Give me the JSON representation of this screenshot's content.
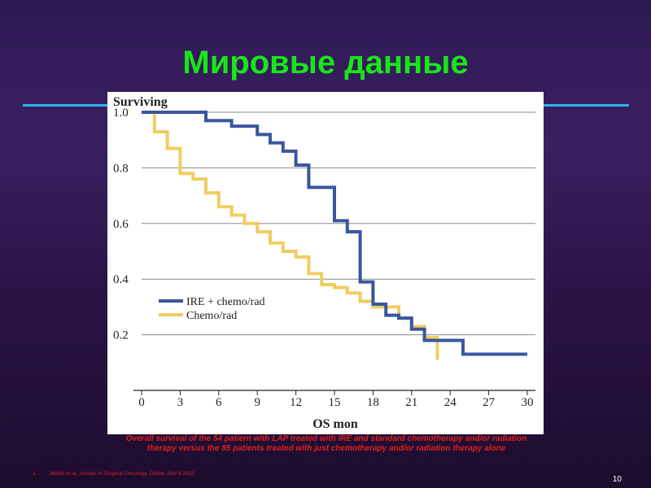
{
  "slide": {
    "title": "Мировые данные",
    "caption": "Overall survival of the 54 patient with LAP treated with IRE and standard chemotherapy and/or radiation therapy versus the 85 patients treated with just chemotherapy and/or radiation therapy alone",
    "footnote_number": "1.",
    "footnote_text": "Martin et al., Annals of Surgical Oncology, Online, Nov 6 2012",
    "page_number": "10",
    "colors": {
      "title": "#19e619",
      "rule": "#27b6f0",
      "caption": "#e0201c",
      "series_ire": "#3a56a0",
      "series_chemo": "#f0cd62"
    }
  },
  "chart_data": {
    "type": "line",
    "step": true,
    "ylabel": "Surviving",
    "xlabel": "OS mon",
    "xlim": [
      0,
      30
    ],
    "ylim": [
      0,
      1.0
    ],
    "x_ticks": [
      0,
      3,
      6,
      9,
      12,
      15,
      18,
      21,
      24,
      27,
      30
    ],
    "y_ticks": [
      0.2,
      0.4,
      0.6,
      0.8,
      1.0
    ],
    "y_tick_labels": [
      "0.2",
      "0.4",
      "0.6",
      "0.8",
      "1.0"
    ],
    "grid": true,
    "legend": "center-left",
    "series": [
      {
        "name": "IRE + chemo/rad",
        "color": "#3a56a0",
        "points": [
          [
            0,
            1.0
          ],
          [
            5,
            0.97
          ],
          [
            7,
            0.95
          ],
          [
            9,
            0.92
          ],
          [
            10,
            0.89
          ],
          [
            11,
            0.86
          ],
          [
            12,
            0.81
          ],
          [
            13,
            0.73
          ],
          [
            15,
            0.61
          ],
          [
            16,
            0.57
          ],
          [
            17,
            0.39
          ],
          [
            18,
            0.31
          ],
          [
            19,
            0.27
          ],
          [
            20,
            0.26
          ],
          [
            21,
            0.22
          ],
          [
            22,
            0.18
          ],
          [
            25,
            0.13
          ],
          [
            30,
            0.13
          ]
        ]
      },
      {
        "name": "Chemo/rad",
        "color": "#f0cd62",
        "points": [
          [
            1,
            1.0
          ],
          [
            1,
            0.93
          ],
          [
            2,
            0.87
          ],
          [
            3,
            0.78
          ],
          [
            4,
            0.76
          ],
          [
            5,
            0.71
          ],
          [
            6,
            0.66
          ],
          [
            7,
            0.63
          ],
          [
            8,
            0.6
          ],
          [
            9,
            0.57
          ],
          [
            10,
            0.53
          ],
          [
            11,
            0.5
          ],
          [
            12,
            0.48
          ],
          [
            13,
            0.42
          ],
          [
            14,
            0.38
          ],
          [
            15,
            0.37
          ],
          [
            16,
            0.35
          ],
          [
            17,
            0.32
          ],
          [
            18,
            0.3
          ],
          [
            20,
            0.26
          ],
          [
            21,
            0.23
          ],
          [
            22,
            0.19
          ],
          [
            23,
            0.11
          ]
        ]
      }
    ]
  }
}
